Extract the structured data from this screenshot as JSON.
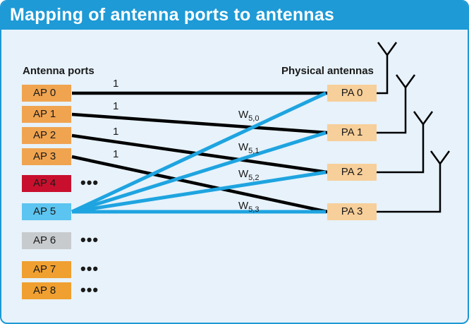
{
  "title": "Mapping of antenna ports to antennas",
  "headers": {
    "antenna_ports": "Antenna ports",
    "physical_antennas": "Physical antennas"
  },
  "antenna_ports": [
    {
      "label": "AP 0",
      "color": "#f0a450"
    },
    {
      "label": "AP 1",
      "color": "#f0a450"
    },
    {
      "label": "AP 2",
      "color": "#f0a450"
    },
    {
      "label": "AP 3",
      "color": "#f0a450"
    },
    {
      "label": "AP 4",
      "color": "#c8102e"
    },
    {
      "label": "AP 5",
      "color": "#5cc4f0"
    },
    {
      "label": "AP 6",
      "color": "#c8cbce"
    },
    {
      "label": "AP 7",
      "color": "#f0a030"
    },
    {
      "label": "AP 8",
      "color": "#f0a030"
    }
  ],
  "ellipsis": "•••",
  "physical_antennas": [
    {
      "label": "PA 0"
    },
    {
      "label": "PA 1"
    },
    {
      "label": "PA 2"
    },
    {
      "label": "PA 3"
    }
  ],
  "direct_weights": [
    "1",
    "1",
    "1",
    "1"
  ],
  "precoding_weights": [
    {
      "base": "W",
      "sub": "5,0"
    },
    {
      "base": "W",
      "sub": "5,1"
    },
    {
      "base": "W",
      "sub": "5,2"
    },
    {
      "base": "W",
      "sub": "5,3"
    }
  ],
  "colors": {
    "title_bar": "#1e9ad6",
    "background": "#e7f2fa",
    "direct_line": "#000000",
    "precoded_line": "#1ea4e0",
    "pa_box": "#f7cf9a"
  }
}
